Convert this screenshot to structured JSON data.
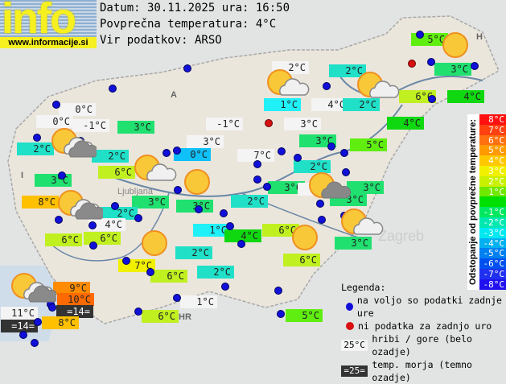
{
  "logo": {
    "word": "info",
    "url": "www.informacije.si"
  },
  "header": {
    "date_line": "Datum: 30.11.2025 ura: 16:50",
    "avg_line": "Povprečna temperatura: 4°C",
    "source_line": "Vir podatkov: ARSO"
  },
  "map_labels": {
    "austria": "A",
    "hungary": "H",
    "italy": "I",
    "croatia": "HR",
    "ljubljana": "Ljubljana",
    "zagreb": "Zagreb"
  },
  "colors": {
    "mountain": "#f4f4f4",
    "sea": "#333333",
    "station_dot": "#1010d8",
    "no_data_dot": "#d81010"
  },
  "stations": [
    {
      "temp": "5°C",
      "bg": "#60ee10"
    },
    {
      "temp": "2°C",
      "bg": "#f4f4f4"
    },
    {
      "temp": "2°C",
      "bg": "#20e0c8"
    },
    {
      "temp": "3°C",
      "bg": "#20e070"
    },
    {
      "temp": "6°C",
      "bg": "#c0f020"
    },
    {
      "temp": "4°C",
      "bg": "#10d810"
    },
    {
      "temp": "1°C",
      "bg": "#20f0f8"
    },
    {
      "temp": "4°C",
      "bg": "#f4f4f4"
    },
    {
      "temp": "2°C",
      "bg": "#20e0c8"
    },
    {
      "temp": "3°C",
      "bg": "#f4f4f4"
    },
    {
      "temp": "4°C",
      "bg": "#10d810"
    },
    {
      "temp": "5°C",
      "bg": "#60ee10"
    },
    {
      "temp": "3°C",
      "bg": "#20e070"
    },
    {
      "temp": "7°C",
      "bg": "#f4f4f4"
    },
    {
      "temp": "2°C",
      "bg": "#20e0c8"
    },
    {
      "temp": "3°C",
      "bg": "#20e070"
    },
    {
      "temp": "5°C",
      "bg": "#f4f4f4"
    },
    {
      "temp": "3°C",
      "bg": "#20e070"
    },
    {
      "temp": "3°C",
      "bg": "#20e070"
    },
    {
      "temp": "3°C",
      "bg": "#20e070"
    },
    {
      "temp": "0°C",
      "bg": "#f4f4f4"
    },
    {
      "temp": "0°C",
      "bg": "#f4f4f4"
    },
    {
      "temp": "-1°C",
      "bg": "#f4f4f4"
    },
    {
      "temp": "3°C",
      "bg": "#20e070"
    },
    {
      "temp": "2°C",
      "bg": "#20e0c8"
    },
    {
      "temp": "2°C",
      "bg": "#20e0c8"
    },
    {
      "temp": "-1°C",
      "bg": "#f4f4f4"
    },
    {
      "temp": "3°C",
      "bg": "#f4f4f4"
    },
    {
      "temp": "0°C",
      "bg": "#10c0f8"
    },
    {
      "temp": "2°C",
      "bg": "#20e0c8"
    },
    {
      "temp": "6°C",
      "bg": "#c0f020"
    },
    {
      "temp": "3°C",
      "bg": "#20e070"
    },
    {
      "temp": "8°C",
      "bg": "#ffc000"
    },
    {
      "temp": "3°C",
      "bg": "#20e070"
    },
    {
      "temp": "3°C",
      "bg": "#20e070"
    },
    {
      "temp": "2°C",
      "bg": "#20e0c8"
    },
    {
      "temp": "4°C",
      "bg": "#f4f4f4"
    },
    {
      "temp": "6°C",
      "bg": "#c0f020"
    },
    {
      "temp": "6°C",
      "bg": "#c0f020"
    },
    {
      "temp": "1°C",
      "bg": "#20f0f8"
    },
    {
      "temp": "4°C",
      "bg": "#10d810"
    },
    {
      "temp": "6°C",
      "bg": "#c0f020"
    },
    {
      "temp": "6°C",
      "bg": "#c0f020"
    },
    {
      "temp": "2°C",
      "bg": "#20e0c8"
    },
    {
      "temp": "7°C",
      "bg": "#f0f000"
    },
    {
      "temp": "6°C",
      "bg": "#c0f020"
    },
    {
      "temp": "2°C",
      "bg": "#20e0c8"
    },
    {
      "temp": "9°C",
      "bg": "#ff8c00"
    },
    {
      "temp": "10°C",
      "bg": "#ff6a00"
    },
    {
      "temp": "=14=",
      "bg": "#333333"
    },
    {
      "temp": "11°C",
      "bg": "#f4f4f4"
    },
    {
      "temp": "=14=",
      "bg": "#333333"
    },
    {
      "temp": "8°C",
      "bg": "#ffc000"
    },
    {
      "temp": "1°C",
      "bg": "#f4f4f4"
    },
    {
      "temp": "6°C",
      "bg": "#c0f020"
    },
    {
      "temp": "5°C",
      "bg": "#60ee10"
    }
  ],
  "weather_icons": [
    "sun-cloud",
    "sun-cloud",
    "sun-cloud",
    "sun-cloud",
    "sun-cloud",
    "sun-cloud",
    "sun-cloud",
    "sun-dark-cloud",
    "sun",
    "sun",
    "sun",
    "sun"
  ],
  "colorbar": {
    "title": "Odstopanje od povprečne temperature:",
    "steps": [
      {
        "label": "8°C",
        "color": "#ff1010"
      },
      {
        "label": "7°C",
        "color": "#ff4010"
      },
      {
        "label": "6°C",
        "color": "#ff7010"
      },
      {
        "label": "5°C",
        "color": "#ff9a00"
      },
      {
        "label": "4°C",
        "color": "#ffc800"
      },
      {
        "label": "3°C",
        "color": "#f0f000"
      },
      {
        "label": "2°C",
        "color": "#c8f000"
      },
      {
        "label": "1°C",
        "color": "#70e800"
      },
      {
        "label": "",
        "color": "#00e000"
      },
      {
        "label": "-1°C",
        "color": "#00e860"
      },
      {
        "label": "-2°C",
        "color": "#00e8b0"
      },
      {
        "label": "-3°C",
        "color": "#00e8f0"
      },
      {
        "label": "-4°C",
        "color": "#00b0f0"
      },
      {
        "label": "-5°C",
        "color": "#0080f0"
      },
      {
        "label": "-6°C",
        "color": "#0050f0"
      },
      {
        "label": "-7°C",
        "color": "#2030f0"
      },
      {
        "label": "-8°C",
        "color": "#2010f0"
      }
    ]
  },
  "legend": {
    "title": "Legenda:",
    "available": "na voljo so podatki zadnje ure",
    "no_data": "ni podatka za zadnjo uro",
    "mountain_sample": "25°C",
    "mountain_text": "hribi / gore (belo ozadje)",
    "sea_sample": "=25=",
    "sea_text": "temp. morja (temno ozadje)"
  }
}
